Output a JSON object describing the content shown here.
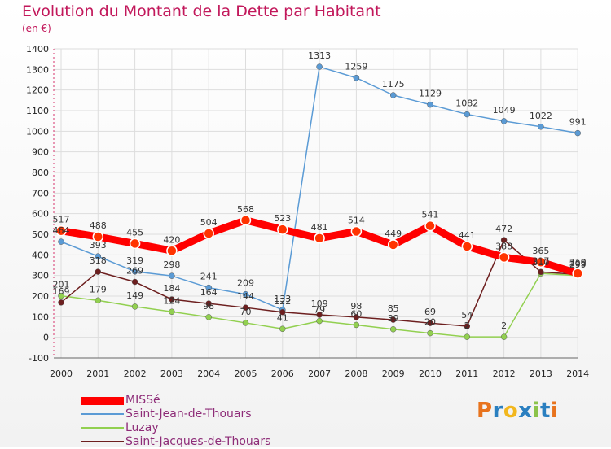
{
  "header": {
    "title": "Evolution du Montant de la Dette par Habitant",
    "unit": "(en €)"
  },
  "logo": {
    "text": "Proxiti",
    "colors": [
      "#e8731d",
      "#2a7fc0",
      "#f2b71e",
      "#2a7fc0",
      "#8bc34a",
      "#2a7fc0",
      "#e8731d"
    ]
  },
  "colors": {
    "title": "#c2185b",
    "axis_text": "#222222",
    "legend_text": "#8e2c78",
    "grid": "#dddddd"
  },
  "chart_data": {
    "type": "line",
    "categories": [
      "2000",
      "2001",
      "2002",
      "2003",
      "2004",
      "2005",
      "2006",
      "2007",
      "2008",
      "2009",
      "2010",
      "2011",
      "2012",
      "2013",
      "2014"
    ],
    "ylim": [
      -100,
      1400
    ],
    "yticks": [
      "-100",
      "0",
      "100",
      "200",
      "300",
      "400",
      "500",
      "600",
      "700",
      "800",
      "900",
      "1000",
      "1100",
      "1200",
      "1300",
      "1400"
    ],
    "grid": true,
    "legend_position": "bottom-left",
    "series": [
      {
        "name": "MISSé",
        "color": "#ff0000",
        "values": [
          517,
          488,
          455,
          420,
          504,
          568,
          523,
          481,
          514,
          449,
          541,
          441,
          388,
          365,
          310
        ],
        "labels": [
          "517",
          "488",
          "455",
          "420",
          "504",
          "568",
          "523",
          "481",
          "514",
          "449",
          "541",
          "441",
          "388",
          "365",
          "310"
        ]
      },
      {
        "name": "Saint-Jean-de-Thouars",
        "color": "#5b9bd5",
        "values": [
          464,
          393,
          319,
          298,
          241,
          209,
          133,
          1313,
          1259,
          1175,
          1129,
          1082,
          1049,
          1022,
          991
        ],
        "labels": [
          "464",
          "393",
          "319",
          "298",
          "241",
          "209",
          "133",
          "1313",
          "1259",
          "1175",
          "1129",
          "1082",
          "1049",
          "1022",
          "991"
        ]
      },
      {
        "name": "Luzay",
        "color": "#92d050",
        "values": [
          201,
          179,
          149,
          124,
          98,
          70,
          41,
          79,
          60,
          39,
          20,
          2,
          2,
          310,
          299
        ],
        "labels": [
          "201",
          "179",
          "149",
          "124",
          "98",
          "70",
          "41",
          "79",
          "60",
          "39",
          "20",
          "2",
          "2",
          "310",
          "299"
        ]
      },
      {
        "name": "Saint-Jacques-de-Thouars",
        "color": "#6d1f1f",
        "values": [
          169,
          318,
          269,
          184,
          164,
          144,
          122,
          109,
          98,
          85,
          69,
          54,
          472,
          317,
          305
        ],
        "labels": [
          "169",
          "318",
          "269",
          "184",
          "164",
          "144",
          "122",
          "109",
          "98",
          "85",
          "69",
          "54",
          "472",
          "317",
          "305"
        ]
      }
    ]
  }
}
